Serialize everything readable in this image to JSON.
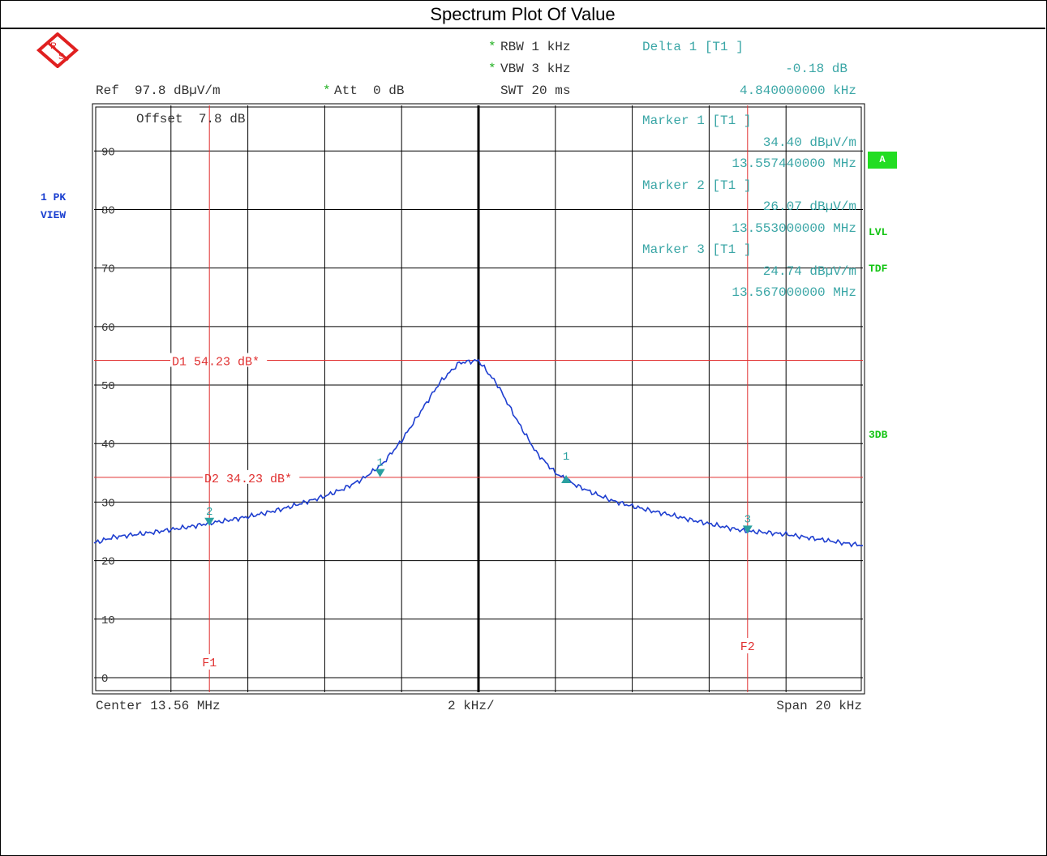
{
  "title": "Spectrum Plot Of Value",
  "colors": {
    "grid": "#000000",
    "trace": "#1f3fd0",
    "lines": "#e03030",
    "markers": "#2aa0a0",
    "info": "#3aa6a6",
    "status": "#14c414",
    "badge_bg": "#22dd22"
  },
  "header": {
    "rbw_star": "*",
    "rbw": "RBW 1 kHz",
    "vbw_star": "*",
    "vbw": "VBW 3 kHz",
    "swt": "SWT 20 ms",
    "delta_title": "Delta 1 [T1 ]",
    "delta_level": "-0.18 dB",
    "delta_freq": "4.840000000 kHz",
    "ref": "Ref  97.8 dBµV/m",
    "att_star": "*",
    "att": "Att  0 dB",
    "offset": "Offset  7.8 dB"
  },
  "markers_info": [
    {
      "title": "Marker 1 [T1 ]",
      "level": "34.40 dBµV/m",
      "freq": "13.557440000 MHz"
    },
    {
      "title": "Marker 2 [T1 ]",
      "level": "26.07 dBµV/m",
      "freq": "13.553000000 MHz"
    },
    {
      "title": "Marker 3 [T1 ]",
      "level": "24.74 dBµV/m",
      "freq": "13.567000000 MHz"
    }
  ],
  "side": {
    "trace_mode": "1 PK",
    "trace_view": "VIEW",
    "badge_a": "A",
    "lvl": "LVL",
    "tdf": "TDF",
    "db3": "3DB"
  },
  "footer": {
    "center": "Center 13.56 MHz",
    "per_div": "2 kHz/",
    "span": "Span 20 kHz"
  },
  "chart_data": {
    "type": "line",
    "x_unit": "MHz",
    "y_unit": "dBµV/m",
    "xlim": [
      13.55,
      13.57
    ],
    "ylim": [
      -2.5,
      97.8
    ],
    "y_ticks": [
      0,
      10,
      20,
      30,
      40,
      50,
      60,
      70,
      80,
      90
    ],
    "grid": true,
    "display_lines": [
      {
        "label": "D1 54.23 dB*",
        "value": 54.23
      },
      {
        "label": "D2 34.23 dB*",
        "value": 34.23
      }
    ],
    "freq_lines": [
      {
        "label": "F1",
        "value": 13.553
      },
      {
        "label": "F2",
        "value": 13.567
      }
    ],
    "markers": [
      {
        "label": "1",
        "x": 13.55744,
        "y": 34.4,
        "kind": "marker"
      },
      {
        "label": "2",
        "x": 13.553,
        "y": 26.07,
        "kind": "marker"
      },
      {
        "label": "3",
        "x": 13.567,
        "y": 24.74,
        "kind": "marker"
      },
      {
        "label": "1",
        "x": 13.56228,
        "y": 34.22,
        "kind": "delta"
      }
    ],
    "series": [
      {
        "x": [
          13.55,
          13.5505,
          13.551,
          13.5515,
          13.552,
          13.5525,
          13.553,
          13.5535,
          13.554,
          13.5545,
          13.555,
          13.5555,
          13.556,
          13.5565,
          13.557,
          13.5575,
          13.558,
          13.5585,
          13.559,
          13.5595,
          13.56,
          13.5605,
          13.561,
          13.5615,
          13.562,
          13.5625,
          13.563,
          13.5635,
          13.564,
          13.5645,
          13.565,
          13.5655,
          13.566,
          13.5665,
          13.567,
          13.5675,
          13.568,
          13.5685,
          13.569,
          13.5695,
          13.57
        ],
        "values": [
          23.0,
          24.0,
          24.4,
          24.8,
          25.3,
          25.8,
          26.4,
          26.9,
          27.5,
          28.2,
          29.0,
          30.0,
          31.0,
          32.3,
          34.0,
          36.5,
          40.5,
          45.5,
          50.5,
          53.8,
          54.2,
          50.0,
          44.0,
          38.5,
          35.0,
          33.0,
          31.5,
          30.2,
          29.3,
          28.5,
          27.8,
          27.0,
          26.3,
          25.6,
          25.0,
          24.8,
          24.5,
          24.0,
          23.5,
          23.0,
          22.6
        ]
      }
    ]
  }
}
